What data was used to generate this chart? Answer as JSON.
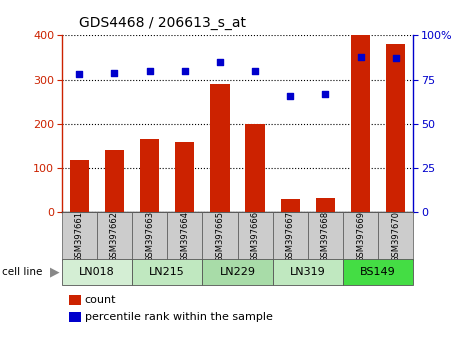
{
  "title": "GDS4468 / 206613_s_at",
  "samples": [
    "GSM397661",
    "GSM397662",
    "GSM397663",
    "GSM397664",
    "GSM397665",
    "GSM397666",
    "GSM397667",
    "GSM397668",
    "GSM397669",
    "GSM397670"
  ],
  "counts": [
    118,
    140,
    165,
    158,
    290,
    200,
    30,
    32,
    400,
    380
  ],
  "percentile_ranks": [
    78,
    79,
    80,
    80,
    85,
    80,
    66,
    67,
    88,
    87
  ],
  "cell_lines": [
    {
      "name": "LN018",
      "samples": [
        0,
        1
      ],
      "color": "#d4eed4"
    },
    {
      "name": "LN215",
      "samples": [
        2,
        3
      ],
      "color": "#c0e8c0"
    },
    {
      "name": "LN229",
      "samples": [
        4,
        5
      ],
      "color": "#a8dca8"
    },
    {
      "name": "LN319",
      "samples": [
        6,
        7
      ],
      "color": "#c0e8c0"
    },
    {
      "name": "BS149",
      "samples": [
        8,
        9
      ],
      "color": "#44dd44"
    }
  ],
  "bar_color": "#cc2200",
  "dot_color": "#0000cc",
  "left_ylim": [
    0,
    400
  ],
  "right_ylim": [
    0,
    100
  ],
  "left_yticks": [
    0,
    100,
    200,
    300,
    400
  ],
  "right_yticks": [
    0,
    25,
    50,
    75,
    100
  ],
  "right_yticklabels": [
    "0",
    "25",
    "50",
    "75",
    "100%"
  ],
  "background_color": "#ffffff",
  "grid_color": "#000000",
  "sample_bg_color": "#cccccc",
  "legend_count_color": "#cc2200",
  "legend_pct_color": "#0000cc"
}
